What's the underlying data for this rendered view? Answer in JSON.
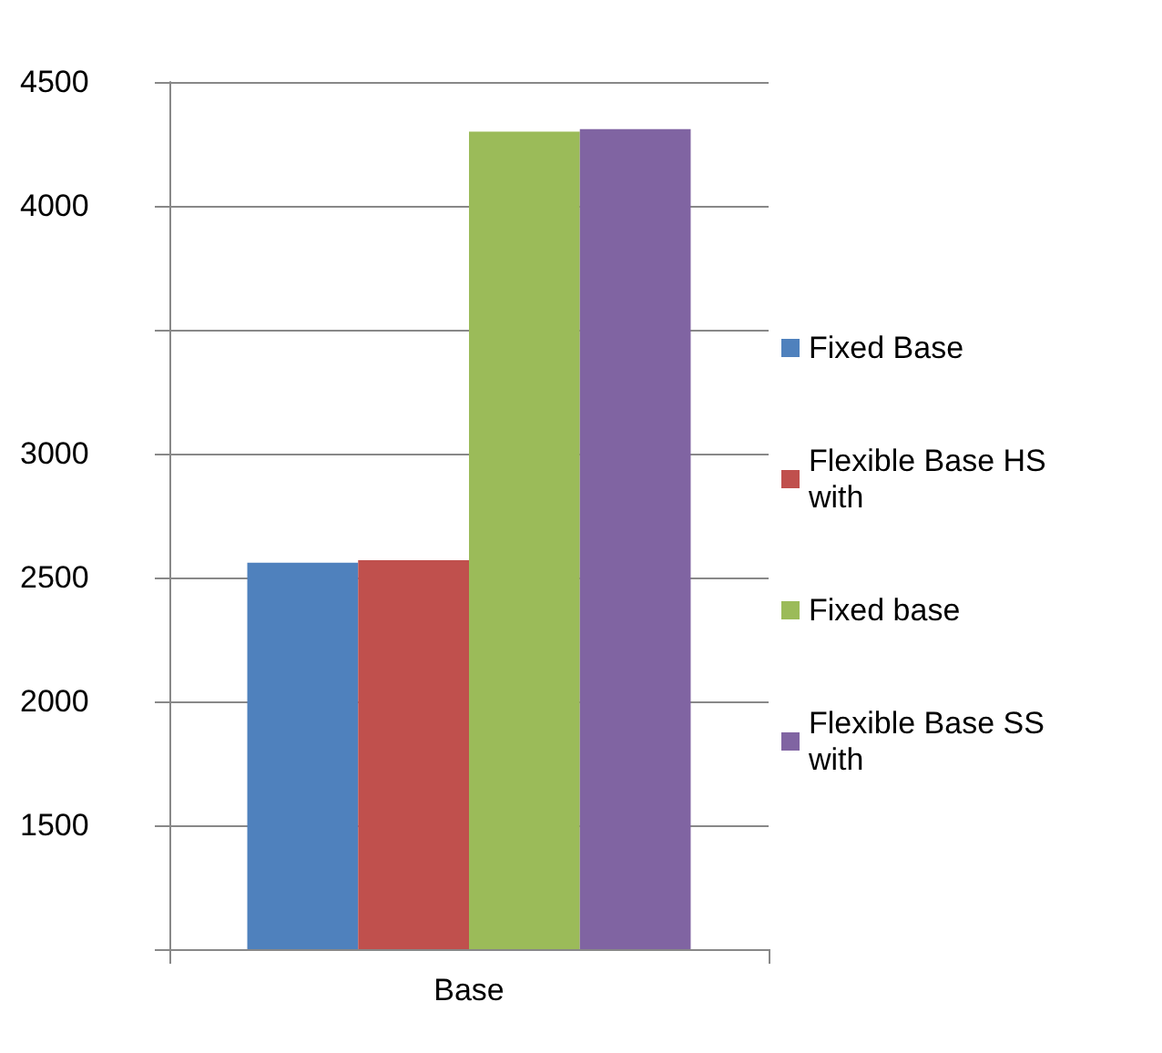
{
  "chart_data": {
    "type": "bar",
    "categories": [
      "Base"
    ],
    "series": [
      {
        "name": "Fixed Base",
        "color": "#4f81bd",
        "values": [
          2560
        ]
      },
      {
        "name": "Flexible Base HS\nwith",
        "color": "#c0504d",
        "values": [
          2570
        ]
      },
      {
        "name": "Fixed base",
        "color": "#9bbb59",
        "values": [
          4300
        ]
      },
      {
        "name": "Flexible Base SS\nwith",
        "color": "#8064a2",
        "values": [
          4310
        ]
      }
    ],
    "ylim": [
      1000,
      4500
    ],
    "yticks": [
      {
        "value": 1000,
        "label": null
      },
      1500,
      2000,
      2500,
      3000,
      {
        "value": 3500,
        "label": null
      },
      4000,
      4500
    ],
    "grid": "y",
    "legend": "right"
  }
}
